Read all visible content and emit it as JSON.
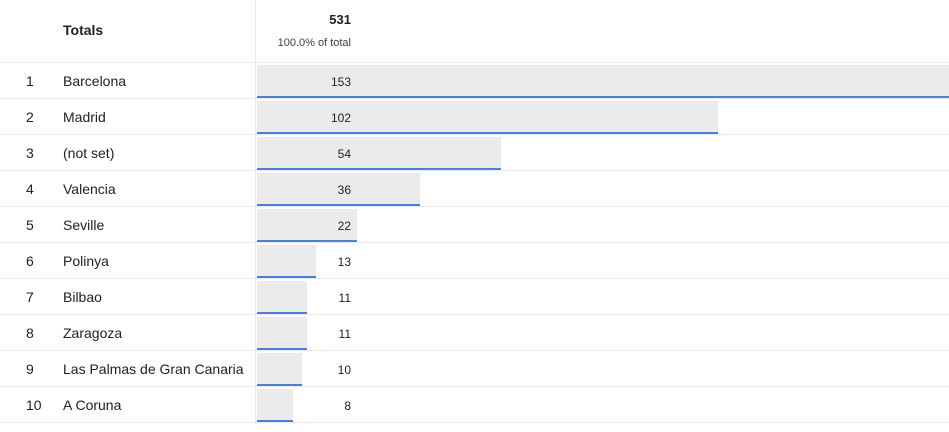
{
  "totals": {
    "label": "Totals",
    "value": "531",
    "percent": "100.0% of total"
  },
  "rows": [
    {
      "rank": "1",
      "city": "Barcelona",
      "value": "153",
      "bar_fraction": 1.0
    },
    {
      "rank": "2",
      "city": "Madrid",
      "value": "102",
      "bar_fraction": 0.6667
    },
    {
      "rank": "3",
      "city": "(not set)",
      "value": "54",
      "bar_fraction": 0.3529
    },
    {
      "rank": "4",
      "city": "Valencia",
      "value": "36",
      "bar_fraction": 0.2353
    },
    {
      "rank": "5",
      "city": "Seville",
      "value": "22",
      "bar_fraction": 0.1438
    },
    {
      "rank": "6",
      "city": "Polinya",
      "value": "13",
      "bar_fraction": 0.085
    },
    {
      "rank": "7",
      "city": "Bilbao",
      "value": "11",
      "bar_fraction": 0.0719
    },
    {
      "rank": "8",
      "city": "Zaragoza",
      "value": "11",
      "bar_fraction": 0.0719
    },
    {
      "rank": "9",
      "city": "Las Palmas de Gran Canaria",
      "value": "10",
      "bar_fraction": 0.0654
    },
    {
      "rank": "10",
      "city": "A Coruna",
      "value": "8",
      "bar_fraction": 0.0523
    }
  ],
  "colors": {
    "bar_fill": "#ebebeb",
    "bar_accent": "#4a7fd6",
    "divider": "#e8eaed"
  }
}
